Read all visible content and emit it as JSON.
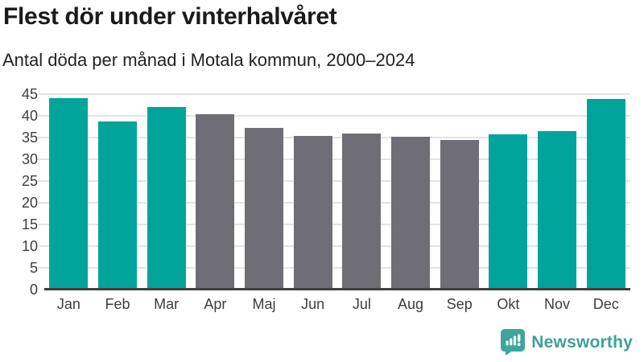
{
  "header": {
    "title": "Flest dör under vinterhalvåret",
    "subtitle": "Antal döda per månad i Motala kommun, 2000–2024"
  },
  "chart_data": {
    "type": "bar",
    "categories": [
      "Jan",
      "Feb",
      "Mar",
      "Apr",
      "Maj",
      "Jun",
      "Jul",
      "Aug",
      "Sep",
      "Okt",
      "Nov",
      "Dec"
    ],
    "values": [
      44.0,
      38.7,
      42.0,
      40.3,
      37.3,
      35.4,
      36.0,
      35.2,
      34.4,
      35.7,
      36.5,
      43.9
    ],
    "highlighted": [
      true,
      true,
      true,
      false,
      false,
      false,
      false,
      false,
      false,
      true,
      true,
      true
    ],
    "title": "Flest dör under vinterhalvåret",
    "subtitle": "Antal döda per månad i Motala kommun, 2000–2024",
    "xlabel": "",
    "ylabel": "",
    "ylim": [
      0,
      45
    ],
    "ytick_step": 5,
    "grid": true,
    "legend": "none",
    "colors": {
      "highlight": "#00a49b",
      "base": "#6f6d75",
      "gridline": "#e3e3e3",
      "axis": "#3f3f3f"
    }
  },
  "footer": {
    "brand": "Newsworthy",
    "logo_icon": "newsworthy-speech-bubble-bar-chart-icon",
    "brand_color": "#3f9f99",
    "icon_color": "#3aa69e"
  }
}
